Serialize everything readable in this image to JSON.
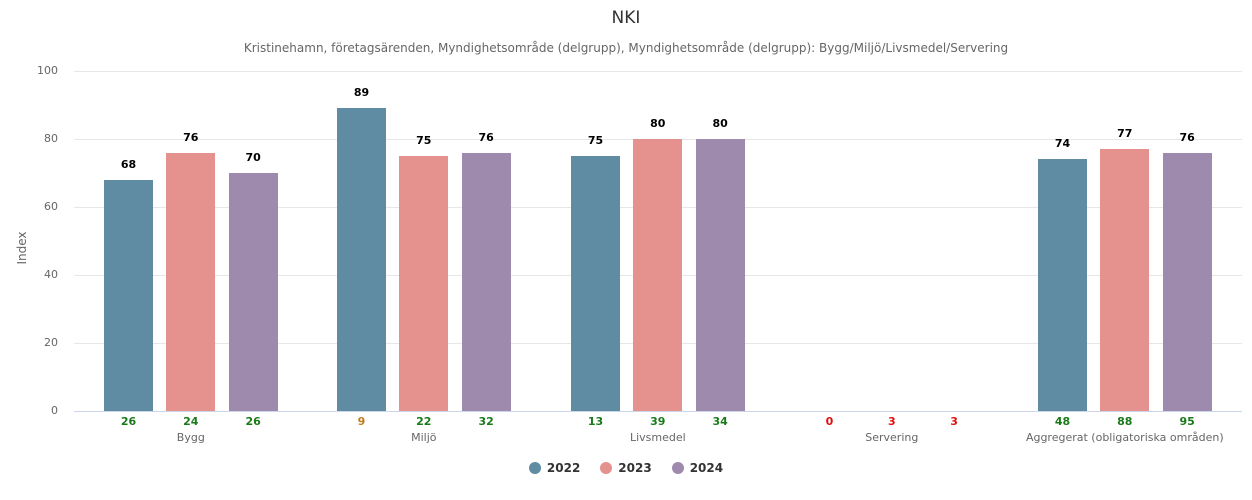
{
  "chart_data": {
    "type": "bar",
    "title": "NKI",
    "subtitle": "Kristinehamn, företagsärenden, Myndighetsområde (delgrupp), Myndighetsområde (delgrupp): Bygg/Miljö/Livsmedel/Servering",
    "xlabel": "",
    "ylabel": "Index",
    "ylim": [
      0,
      100
    ],
    "yticks": [
      "0",
      "20",
      "40",
      "60",
      "80",
      "100"
    ],
    "grid": true,
    "legend_position": "bottom",
    "categories": [
      "Bygg",
      "Miljö",
      "Livsmedel",
      "Servering",
      "Aggregerat (obligatoriska områden)"
    ],
    "series": [
      {
        "name": "2022",
        "color": "#5f8ba3",
        "values": [
          68,
          89,
          75,
          null,
          74
        ],
        "n": [
          26,
          9,
          13,
          0,
          48
        ]
      },
      {
        "name": "2023",
        "color": "#e5918d",
        "values": [
          76,
          75,
          80,
          null,
          77
        ],
        "n": [
          24,
          22,
          39,
          3,
          88
        ]
      },
      {
        "name": "2024",
        "color": "#9d8aad",
        "values": [
          70,
          76,
          80,
          null,
          76
        ],
        "n": [
          26,
          32,
          34,
          3,
          95
        ]
      }
    ],
    "n_colors": {
      "ok": "#1a7a1a",
      "warn": "#c07a1a",
      "low": "#dd1111"
    }
  },
  "labels": {
    "bars": {
      "b0": "68",
      "b1": "76",
      "b2": "70",
      "b3": "89",
      "b4": "75",
      "b5": "76",
      "b6": "75",
      "b7": "80",
      "b8": "80",
      "b12": "74",
      "b13": "77",
      "b14": "76"
    },
    "n": [
      "26",
      "24",
      "26",
      "9",
      "22",
      "32",
      "13",
      "39",
      "34",
      "0",
      "3",
      "3",
      "48",
      "88",
      "95"
    ],
    "legend": [
      "2022",
      "2023",
      "2024"
    ]
  }
}
